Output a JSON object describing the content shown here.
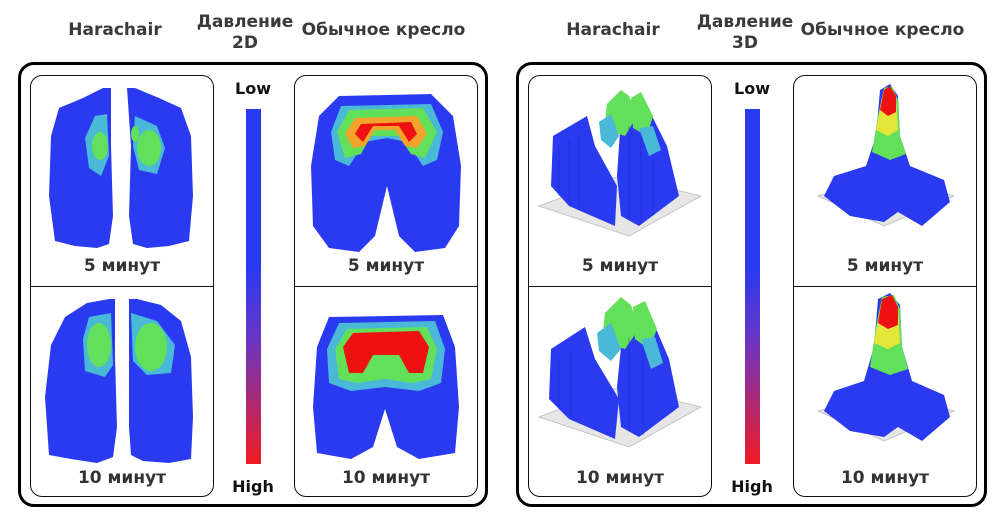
{
  "left_group": {
    "header_harachair": "Harachair",
    "header_pressure": "Давление\n2D",
    "header_regular": "Обычное кресло",
    "harachair_captions": [
      "5 минут",
      "10 минут"
    ],
    "regular_captions": [
      "5 минут",
      "10 минут"
    ]
  },
  "right_group": {
    "header_harachair": "Harachair",
    "header_pressure": "Давление\n3D",
    "header_regular": "Обычное кресло",
    "harachair_captions": [
      "5 минут",
      "10 минут"
    ],
    "regular_captions": [
      "5 минут",
      "10 минут"
    ]
  },
  "scale": {
    "low": "Low",
    "high": "High"
  },
  "colors": {
    "low": "#2a3af0",
    "mid": "#6a36c4",
    "high": "#f01a22",
    "green": "#63e05a",
    "yellow": "#e4e63a",
    "red": "#ee1111",
    "orange": "#f4a32a"
  },
  "icons": {
    "plot_2d": "pressure-heatmap",
    "plot_3d": "pressure-surface"
  }
}
